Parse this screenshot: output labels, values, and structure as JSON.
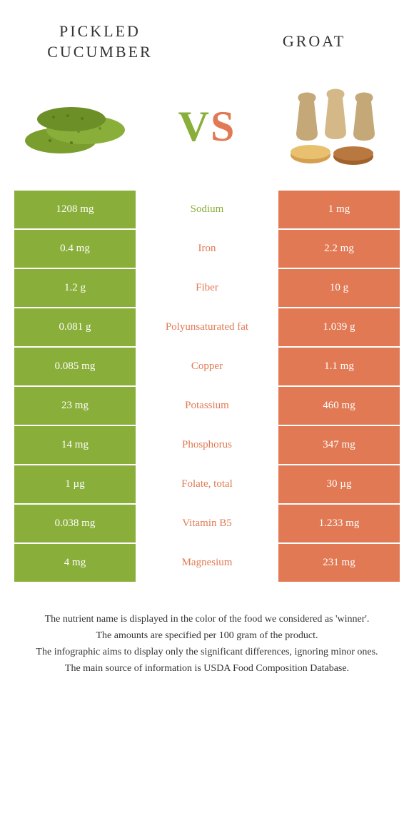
{
  "header": {
    "left_title": "PICKLED CUCUMBER",
    "right_title": "GROAT",
    "vs_v": "V",
    "vs_s": "S"
  },
  "colors": {
    "green": "#8aae3a",
    "orange": "#e17a54",
    "white": "#ffffff",
    "text": "#333333"
  },
  "table": {
    "rows": [
      {
        "left": "1208 mg",
        "mid": "Sodium",
        "right": "1 mg",
        "winner": "green"
      },
      {
        "left": "0.4 mg",
        "mid": "Iron",
        "right": "2.2 mg",
        "winner": "orange"
      },
      {
        "left": "1.2 g",
        "mid": "Fiber",
        "right": "10 g",
        "winner": "orange"
      },
      {
        "left": "0.081 g",
        "mid": "Polyunsaturated fat",
        "right": "1.039 g",
        "winner": "orange"
      },
      {
        "left": "0.085 mg",
        "mid": "Copper",
        "right": "1.1 mg",
        "winner": "orange"
      },
      {
        "left": "23 mg",
        "mid": "Potassium",
        "right": "460 mg",
        "winner": "orange"
      },
      {
        "left": "14 mg",
        "mid": "Phosphorus",
        "right": "347 mg",
        "winner": "orange"
      },
      {
        "left": "1 µg",
        "mid": "Folate, total",
        "right": "30 µg",
        "winner": "orange"
      },
      {
        "left": "0.038 mg",
        "mid": "Vitamin B5",
        "right": "1.233 mg",
        "winner": "orange"
      },
      {
        "left": "4 mg",
        "mid": "Magnesium",
        "right": "231 mg",
        "winner": "orange"
      }
    ]
  },
  "footer": {
    "line1": "The nutrient name is displayed in the color of the food we considered as 'winner'.",
    "line2": "The amounts are specified per 100 gram of the product.",
    "line3": "The infographic aims to display only the significant differences, ignoring minor ones.",
    "line4": "The main source of information is USDA Food Composition Database."
  }
}
